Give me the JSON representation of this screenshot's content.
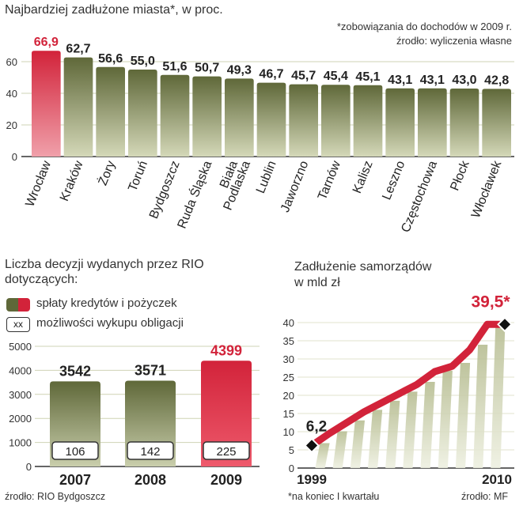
{
  "chart_data": [
    {
      "type": "bar",
      "title": "Najbardziej zadłużone miasta*, w proc.",
      "footnote": "*zobowiązania do dochodów w 2009 r.",
      "source": "źrodło: wyliczenia własne",
      "categories": [
        "Wrocław",
        "Kraków",
        "Żory",
        "Toruń",
        "Bydgoszcz",
        "Ruda Śląska",
        "Biała Podlaska",
        "Lublin",
        "Jaworzno",
        "Tarnów",
        "Kalisz",
        "Leszno",
        "Częstochowa",
        "Płock",
        "Włocławek"
      ],
      "values": [
        66.9,
        62.7,
        56.6,
        55.0,
        51.6,
        50.7,
        49.3,
        46.7,
        45.7,
        45.4,
        45.1,
        43.1,
        43.1,
        43.0,
        42.8
      ],
      "value_labels": [
        "66,9",
        "62,7",
        "56,6",
        "55,0",
        "51,6",
        "50,7",
        "49,3",
        "46,7",
        "45,7",
        "45,4",
        "45,1",
        "43,1",
        "43,1",
        "43,0",
        "42,8"
      ],
      "highlight_index": 0,
      "yticks": [
        "0",
        "20",
        "40",
        "60"
      ],
      "ylim": [
        0,
        68
      ]
    },
    {
      "type": "bar",
      "title_line1": "Liczba decyzji wydanych przez RIO",
      "title_line2": "dotyczących:",
      "legend": [
        "spłaty kredytów i pożyczek",
        "możliwości wykupu obligacji"
      ],
      "legend_box_text": "xx",
      "categories": [
        "2007",
        "2008",
        "2009"
      ],
      "series": [
        {
          "name": "spłaty kredytów i pożyczek",
          "values": [
            3542,
            3571,
            4399
          ]
        },
        {
          "name": "możliwości wykupu obligacji",
          "values": [
            106,
            142,
            225
          ]
        }
      ],
      "yticks": [
        "0",
        "1000",
        "2000",
        "3000",
        "4000",
        "5000"
      ],
      "ylim": [
        0,
        5000
      ],
      "source": "źrodło: RIO Bydgoszcz"
    },
    {
      "type": "line",
      "title_line1": "Zadłużenie samorządów",
      "title_line2": "w mld zł",
      "x": [
        1999,
        2000,
        2001,
        2002,
        2003,
        2004,
        2005,
        2006,
        2007,
        2008,
        2009,
        2010
      ],
      "values": [
        6.2,
        9.5,
        12.5,
        15.5,
        18.0,
        20.5,
        23.0,
        26.5,
        28.0,
        32.5,
        39.5,
        39.5
      ],
      "xtick_labels": [
        "1999",
        "2010"
      ],
      "start_label": "6,2",
      "end_label": "39,5*",
      "yticks": [
        "0",
        "5",
        "10",
        "15",
        "20",
        "25",
        "30",
        "35",
        "40"
      ],
      "ylim": [
        0,
        40
      ],
      "footnote": "*na koniec I kwartału",
      "source": "źrodło: MF"
    }
  ],
  "colors": {
    "red": "#d2233a",
    "red_light": "#ee5a6c",
    "olive_dark": "#5f6839",
    "olive_light": "#d4d8b8",
    "olive_mid": "#8b9360",
    "text": "#222222"
  }
}
